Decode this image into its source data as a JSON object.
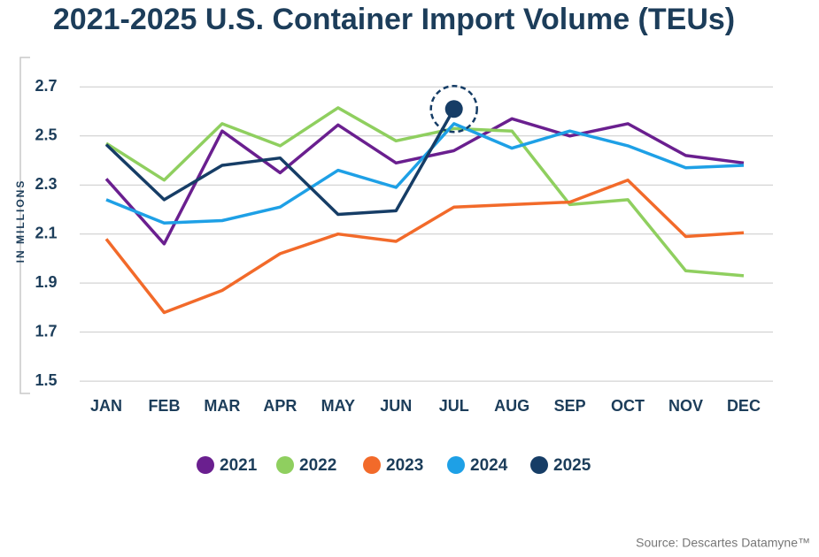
{
  "chart_data": {
    "type": "line",
    "title": "2021-2025 U.S. Container Import Volume (TEUs)",
    "y_label": "IN MILLIONS",
    "source": "Source: Descartes Datamyne™",
    "categories": [
      "JAN",
      "FEB",
      "MAR",
      "APR",
      "MAY",
      "JUN",
      "JUL",
      "AUG",
      "SEP",
      "OCT",
      "NOV",
      "DEC"
    ],
    "series": [
      {
        "name": "2021",
        "color": "#6a1f8f",
        "values": [
          2.325,
          2.06,
          2.52,
          2.35,
          2.545,
          2.39,
          2.44,
          2.57,
          2.5,
          2.55,
          2.42,
          2.39
        ]
      },
      {
        "name": "2022",
        "color": "#8fcf5f",
        "values": [
          2.47,
          2.32,
          2.55,
          2.46,
          2.615,
          2.48,
          2.53,
          2.52,
          2.22,
          2.24,
          1.95,
          1.93
        ]
      },
      {
        "name": "2023",
        "color": "#f26a2a",
        "values": [
          2.08,
          1.78,
          1.87,
          2.02,
          2.1,
          2.07,
          2.21,
          2.22,
          2.23,
          2.32,
          2.09,
          2.105
        ]
      },
      {
        "name": "2024",
        "color": "#1ea0e6",
        "values": [
          2.24,
          2.145,
          2.155,
          2.21,
          2.36,
          2.29,
          2.55,
          2.45,
          2.52,
          2.46,
          2.37,
          2.38
        ]
      },
      {
        "name": "2025",
        "color": "#163d66",
        "values": [
          2.465,
          2.24,
          2.38,
          2.41,
          2.18,
          2.195,
          2.61,
          null,
          null,
          null,
          null,
          null
        ]
      }
    ],
    "ylim": [
      1.45,
      2.82
    ],
    "yticks": [
      1.5,
      1.7,
      1.9,
      2.1,
      2.3,
      2.5,
      2.7
    ],
    "grid": true,
    "legend": "bottom"
  }
}
